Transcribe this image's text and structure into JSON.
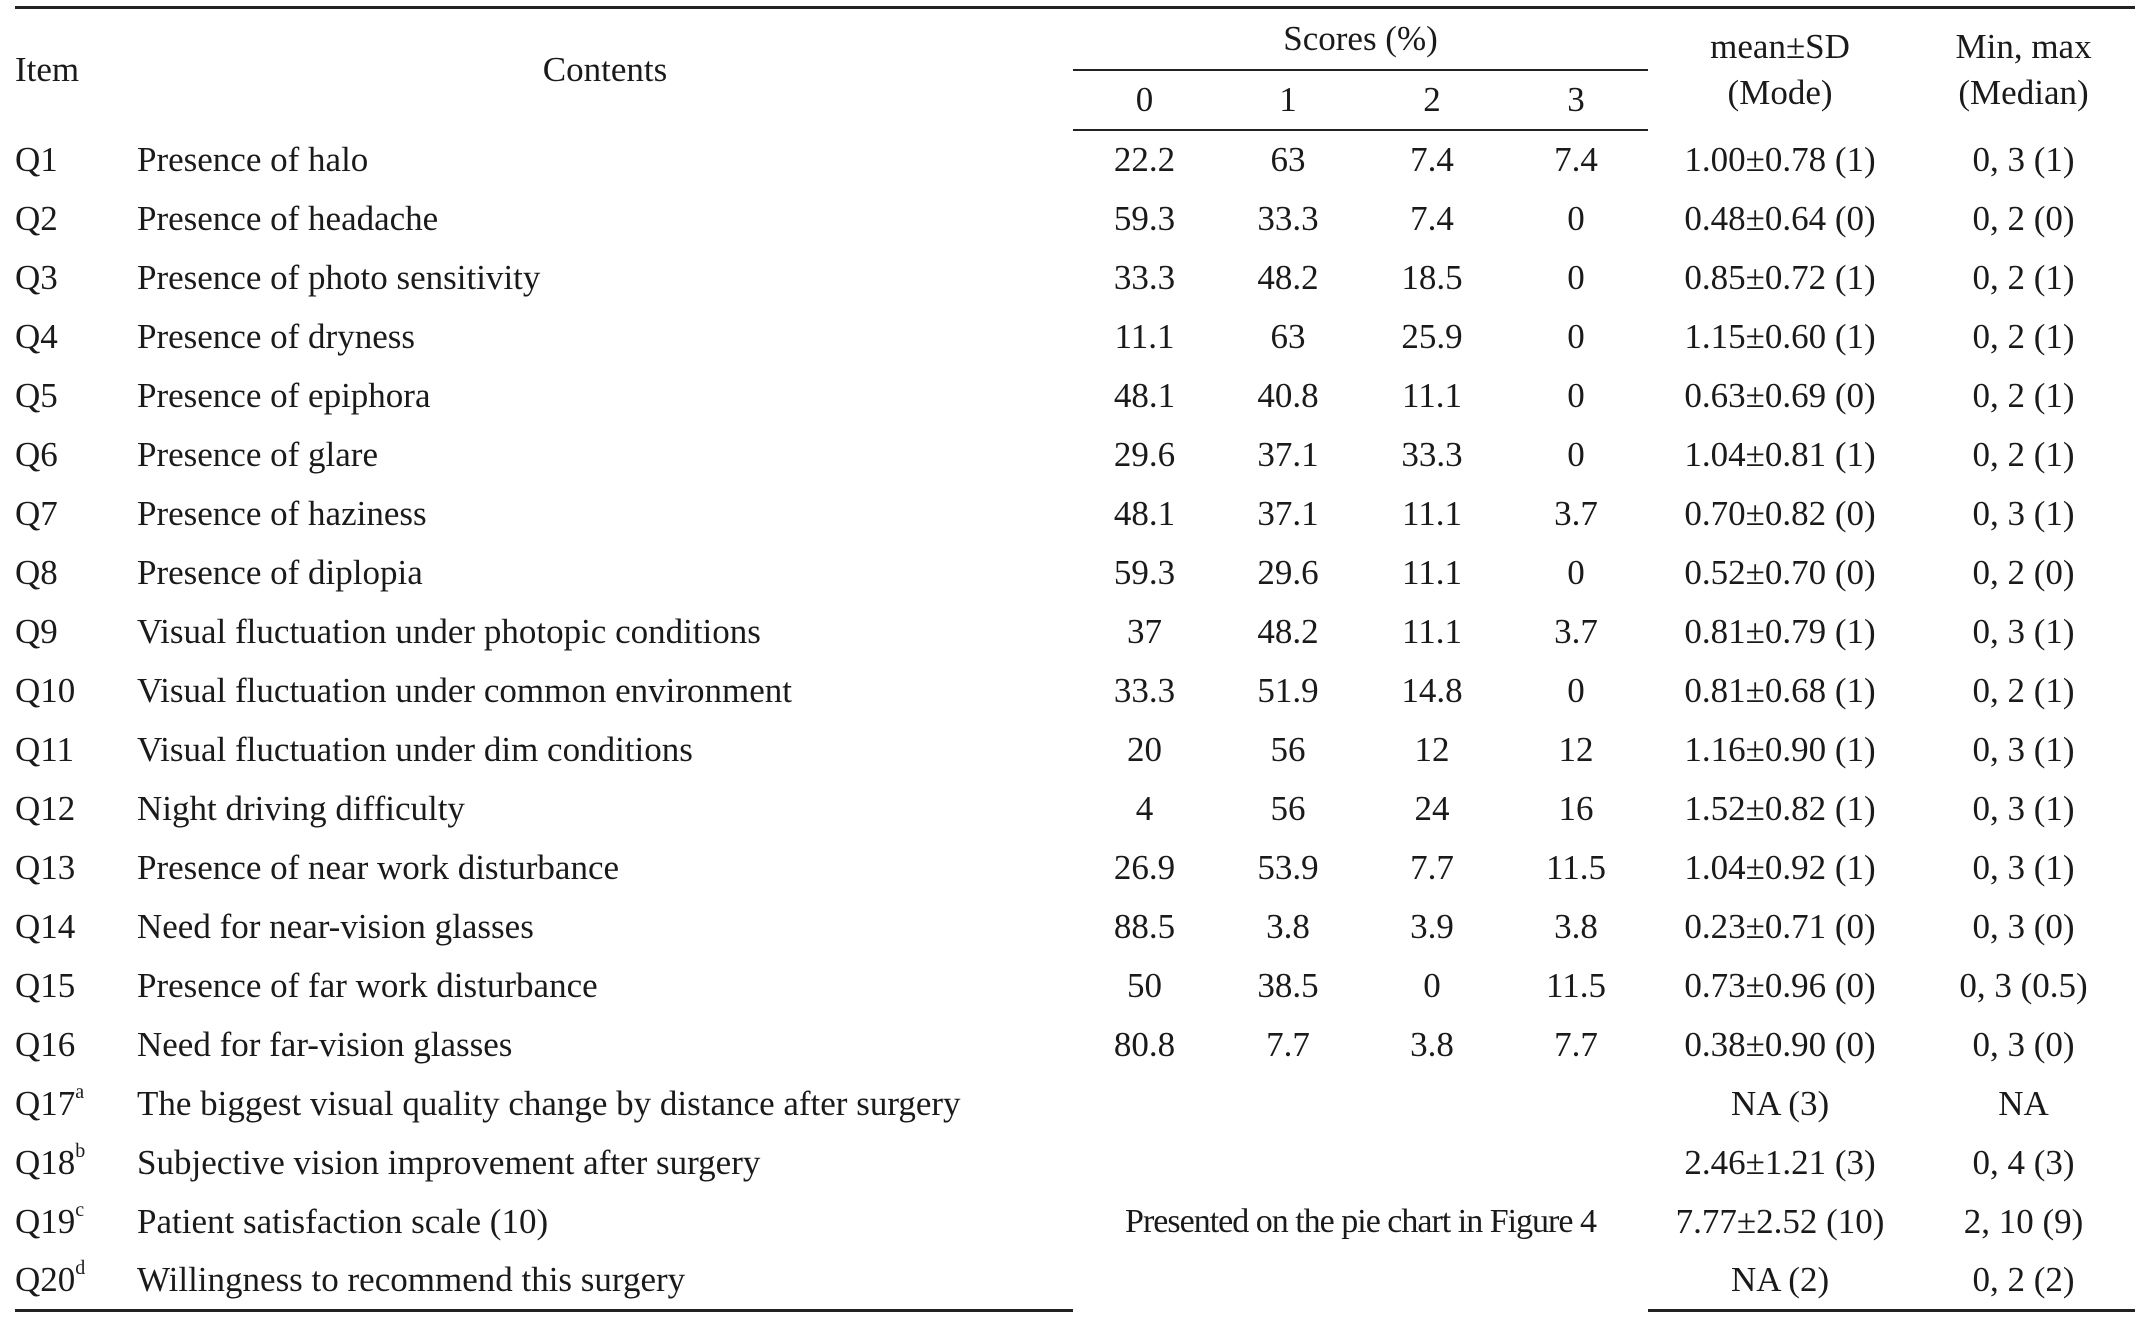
{
  "header": {
    "item": "Item",
    "contents": "Contents",
    "scores_group": "Scores (%)",
    "score_cols": [
      "0",
      "1",
      "2",
      "3"
    ],
    "mean_sd_line1": "mean±SD",
    "mean_sd_line2": "(Mode)",
    "minmax_line1": "Min, max",
    "minmax_line2": "(Median)"
  },
  "rows": [
    {
      "item": "Q1",
      "contents": "Presence of halo",
      "s0": "22.2",
      "s1": "63",
      "s2": "7.4",
      "s3": "7.4",
      "mean": "1.00±0.78 (1)",
      "minmax": "0, 3 (1)"
    },
    {
      "item": "Q2",
      "contents": "Presence of headache",
      "s0": "59.3",
      "s1": "33.3",
      "s2": "7.4",
      "s3": "0",
      "mean": "0.48±0.64 (0)",
      "minmax": "0, 2 (0)"
    },
    {
      "item": "Q3",
      "contents": "Presence of photo sensitivity",
      "s0": "33.3",
      "s1": "48.2",
      "s2": "18.5",
      "s3": "0",
      "mean": "0.85±0.72 (1)",
      "minmax": "0, 2 (1)"
    },
    {
      "item": "Q4",
      "contents": "Presence of dryness",
      "s0": "11.1",
      "s1": "63",
      "s2": "25.9",
      "s3": "0",
      "mean": "1.15±0.60 (1)",
      "minmax": "0, 2 (1)"
    },
    {
      "item": "Q5",
      "contents": "Presence of epiphora",
      "s0": "48.1",
      "s1": "40.8",
      "s2": "11.1",
      "s3": "0",
      "mean": "0.63±0.69 (0)",
      "minmax": "0, 2 (1)"
    },
    {
      "item": "Q6",
      "contents": "Presence of glare",
      "s0": "29.6",
      "s1": "37.1",
      "s2": "33.3",
      "s3": "0",
      "mean": "1.04±0.81 (1)",
      "minmax": "0, 2 (1)"
    },
    {
      "item": "Q7",
      "contents": "Presence of haziness",
      "s0": "48.1",
      "s1": "37.1",
      "s2": "11.1",
      "s3": "3.7",
      "mean": "0.70±0.82 (0)",
      "minmax": "0, 3 (1)"
    },
    {
      "item": "Q8",
      "contents": "Presence of diplopia",
      "s0": "59.3",
      "s1": "29.6",
      "s2": "11.1",
      "s3": "0",
      "mean": "0.52±0.70 (0)",
      "minmax": "0, 2 (0)"
    },
    {
      "item": "Q9",
      "contents": "Visual fluctuation under photopic conditions",
      "s0": "37",
      "s1": "48.2",
      "s2": "11.1",
      "s3": "3.7",
      "mean": "0.81±0.79 (1)",
      "minmax": "0, 3 (1)"
    },
    {
      "item": "Q10",
      "contents": "Visual fluctuation under common environment",
      "s0": "33.3",
      "s1": "51.9",
      "s2": "14.8",
      "s3": "0",
      "mean": "0.81±0.68 (1)",
      "minmax": "0, 2 (1)"
    },
    {
      "item": "Q11",
      "contents": "Visual fluctuation under dim conditions",
      "s0": "20",
      "s1": "56",
      "s2": "12",
      "s3": "12",
      "mean": "1.16±0.90 (1)",
      "minmax": "0, 3 (1)"
    },
    {
      "item": "Q12",
      "contents": "Night driving difficulty",
      "s0": "4",
      "s1": "56",
      "s2": "24",
      "s3": "16",
      "mean": "1.52±0.82 (1)",
      "minmax": "0, 3 (1)"
    },
    {
      "item": "Q13",
      "contents": "Presence of near work disturbance",
      "s0": "26.9",
      "s1": "53.9",
      "s2": "7.7",
      "s3": "11.5",
      "mean": "1.04±0.92 (1)",
      "minmax": "0, 3 (1)"
    },
    {
      "item": "Q14",
      "contents": "Need for near-vision glasses",
      "s0": "88.5",
      "s1": "3.8",
      "s2": "3.9",
      "s3": "3.8",
      "mean": "0.23±0.71 (0)",
      "minmax": "0, 3 (0)"
    },
    {
      "item": "Q15",
      "contents": "Presence of far work disturbance",
      "s0": "50",
      "s1": "38.5",
      "s2": "0",
      "s3": "11.5",
      "mean": "0.73±0.96 (0)",
      "minmax": "0, 3 (0.5)"
    },
    {
      "item": "Q16",
      "contents": "Need for far-vision glasses",
      "s0": "80.8",
      "s1": "7.7",
      "s2": "3.8",
      "s3": "7.7",
      "mean": "0.38±0.90 (0)",
      "minmax": "0, 3 (0)"
    }
  ],
  "footnote_rows": [
    {
      "item": "Q17",
      "sup": "a",
      "contents": "The biggest visual quality change by distance after surgery",
      "mean": "NA (3)",
      "minmax": "NA"
    },
    {
      "item": "Q18",
      "sup": "b",
      "contents": "Subjective vision improvement after surgery",
      "mean": "2.46±1.21 (3)",
      "minmax": "0, 4 (3)"
    },
    {
      "item": "Q19",
      "sup": "c",
      "contents": "Patient satisfaction scale (10)",
      "mean": "7.77±2.52 (10)",
      "minmax": "2, 10 (9)"
    },
    {
      "item": "Q20",
      "sup": "d",
      "contents": "Willingness to recommend this surgery",
      "mean": "NA (2)",
      "minmax": "0, 2 (2)"
    }
  ],
  "merged_note": "Presented on the pie chart in Figure 4"
}
